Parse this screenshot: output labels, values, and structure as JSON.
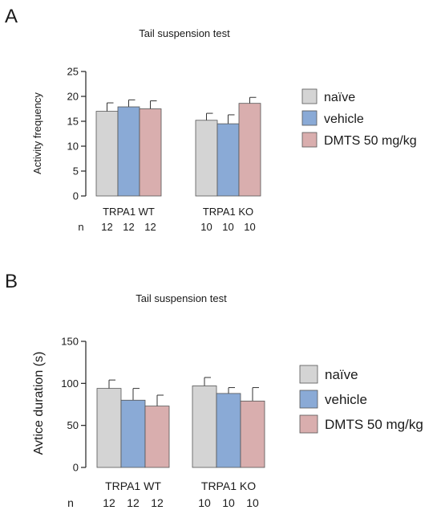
{
  "panels": [
    {
      "letter": "A"
    },
    {
      "letter": "B"
    }
  ],
  "chart_data": [
    {
      "type": "bar",
      "title": "Tail suspension test",
      "ylabel": "Activity frequency",
      "ylim": [
        0,
        25
      ],
      "yticks": [
        0,
        5,
        10,
        15,
        20,
        25
      ],
      "groups": [
        "TRPA1 WT",
        "TRPA1 KO"
      ],
      "n_label": "n",
      "n_values": [
        [
          "12",
          "12",
          "12"
        ],
        [
          "10",
          "10",
          "10"
        ]
      ],
      "series": [
        {
          "name": "naïve",
          "color": "#d4d4d4",
          "values": [
            17.0,
            15.2
          ],
          "errors": [
            1.7,
            1.4
          ]
        },
        {
          "name": "vehicle",
          "color": "#8aaad6",
          "values": [
            17.9,
            14.5
          ],
          "errors": [
            1.4,
            1.8
          ]
        },
        {
          "name": "DMTS 50 mg/kg",
          "color": "#d9aeae",
          "values": [
            17.5,
            18.6
          ],
          "errors": [
            1.6,
            1.2
          ]
        }
      ],
      "grid": false,
      "legend_position": "right"
    },
    {
      "type": "bar",
      "title": "Tail suspension test",
      "ylabel": "Avtice duration (s)",
      "ylim": [
        0,
        150
      ],
      "yticks": [
        0,
        50,
        100,
        150
      ],
      "groups": [
        "TRPA1 WT",
        "TRPA1 KO"
      ],
      "n_label": "n",
      "n_values": [
        [
          "12",
          "12",
          "12"
        ],
        [
          "10",
          "10",
          "10"
        ]
      ],
      "series": [
        {
          "name": "naïve",
          "color": "#d4d4d4",
          "values": [
            94,
            97
          ],
          "errors": [
            10,
            10
          ]
        },
        {
          "name": "vehicle",
          "color": "#8aaad6",
          "values": [
            80,
            88
          ],
          "errors": [
            14,
            7
          ]
        },
        {
          "name": "DMTS 50 mg/kg",
          "color": "#d9aeae",
          "values": [
            73,
            79
          ],
          "errors": [
            13,
            16
          ]
        }
      ],
      "grid": false,
      "legend_position": "right"
    }
  ]
}
